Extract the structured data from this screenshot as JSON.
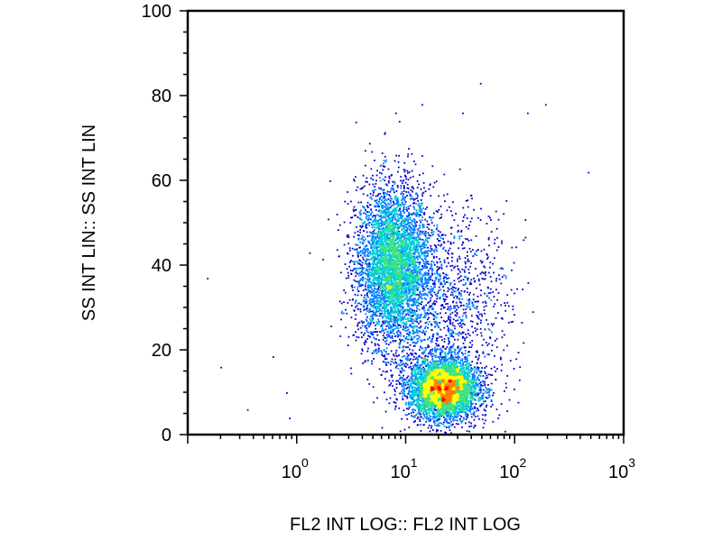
{
  "chart_data": {
    "type": "scatter",
    "subtype": "flow-cytometry-density-dot-plot",
    "xlabel": "FL2 INT LOG:: FL2 INT LOG",
    "ylabel": "SS INT LIN:: SS INT LIN",
    "xscale": "log",
    "xlim": [
      0.1,
      1000
    ],
    "ylim": [
      0,
      100
    ],
    "xticks": [
      {
        "base": "10",
        "exp": "0",
        "value": 1
      },
      {
        "base": "10",
        "exp": "1",
        "value": 10
      },
      {
        "base": "10",
        "exp": "2",
        "value": 100
      },
      {
        "base": "10",
        "exp": "3",
        "value": 1000
      }
    ],
    "yticks": [
      "0",
      "20",
      "40",
      "60",
      "80",
      "100"
    ],
    "grid": false,
    "legend": "none",
    "colormap": [
      "#0000cc",
      "#0080ff",
      "#00d0d0",
      "#40e080",
      "#ffff00",
      "#ff8000",
      "#ff0000"
    ],
    "populations": [
      {
        "center_x": 7.5,
        "center_y": 40,
        "spread_log_x": 0.17,
        "spread_y": 9.5,
        "count": 4500
      },
      {
        "center_x": 22,
        "center_y": 11,
        "spread_log_x": 0.16,
        "spread_y": 3.6,
        "count": 4200
      },
      {
        "center_x": 25,
        "center_y": 30,
        "spread_log_x": 0.28,
        "spread_y": 12,
        "count": 1200
      }
    ],
    "outliers": [
      {
        "x": 0.15,
        "y": 37
      },
      {
        "x": 0.2,
        "y": 16
      },
      {
        "x": 0.35,
        "y": 6
      },
      {
        "x": 0.6,
        "y": 18.5
      },
      {
        "x": 0.8,
        "y": 10
      },
      {
        "x": 0.85,
        "y": 4
      },
      {
        "x": 1.3,
        "y": 43
      },
      {
        "x": 48,
        "y": 83
      },
      {
        "x": 190,
        "y": 78
      },
      {
        "x": 470,
        "y": 62
      },
      {
        "x": 8,
        "y": 76
      },
      {
        "x": 14,
        "y": 78
      },
      {
        "x": 33,
        "y": 76
      },
      {
        "x": 130,
        "y": 76
      }
    ]
  }
}
